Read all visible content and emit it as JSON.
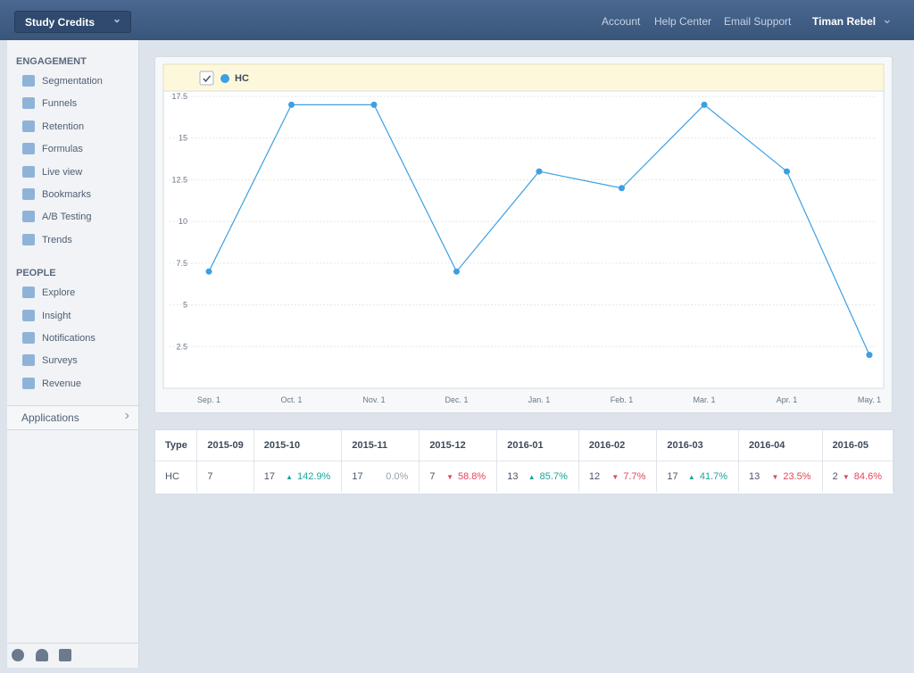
{
  "topbar": {
    "app_selector": "Study Credits",
    "links": [
      "Account",
      "Help Center",
      "Email Support"
    ],
    "user": "Timan Rebel"
  },
  "sidebar": {
    "sections": [
      {
        "title": "ENGAGEMENT",
        "items": [
          "Segmentation",
          "Funnels",
          "Retention",
          "Formulas",
          "Live view",
          "Bookmarks",
          "A/B Testing",
          "Trends"
        ]
      },
      {
        "title": "PEOPLE",
        "items": [
          "Explore",
          "Insight",
          "Notifications",
          "Surveys",
          "Revenue"
        ]
      }
    ],
    "applications": "Applications"
  },
  "chart_data": {
    "type": "line",
    "categories": [
      "Sep. 1",
      "Oct. 1",
      "Nov. 1",
      "Dec. 1",
      "Jan. 1",
      "Feb. 1",
      "Mar. 1",
      "Apr. 1",
      "May. 1"
    ],
    "series": [
      {
        "name": "HC",
        "color": "#3d9fe2",
        "values": [
          7,
          17,
          17,
          7,
          13,
          12,
          17,
          13,
          2
        ]
      }
    ],
    "ylim": [
      0,
      17.5
    ],
    "yticks": [
      2.5,
      5,
      7.5,
      10,
      12.5,
      15,
      17.5
    ],
    "grid": true
  },
  "table": {
    "header": [
      "Type",
      "2015-09",
      "2015-10",
      "2015-11",
      "2015-12",
      "2016-01",
      "2016-02",
      "2016-03",
      "2016-04",
      "2016-05"
    ],
    "rows": [
      [
        {
          "value": "HC"
        },
        {
          "value": "7"
        },
        {
          "value": "17",
          "change": "142.9%",
          "trend": "up"
        },
        {
          "value": "17",
          "change": "0.0%"
        },
        {
          "value": "7",
          "change": "58.8%",
          "trend": "down"
        },
        {
          "value": "13",
          "change": "85.7%",
          "trend": "up"
        },
        {
          "value": "12",
          "change": "7.7%",
          "trend": "down"
        },
        {
          "value": "17",
          "change": "41.7%",
          "trend": "up"
        },
        {
          "value": "13",
          "change": "23.5%",
          "trend": "down"
        },
        {
          "value": "2",
          "change": "84.6%",
          "trend": "down"
        }
      ]
    ]
  }
}
